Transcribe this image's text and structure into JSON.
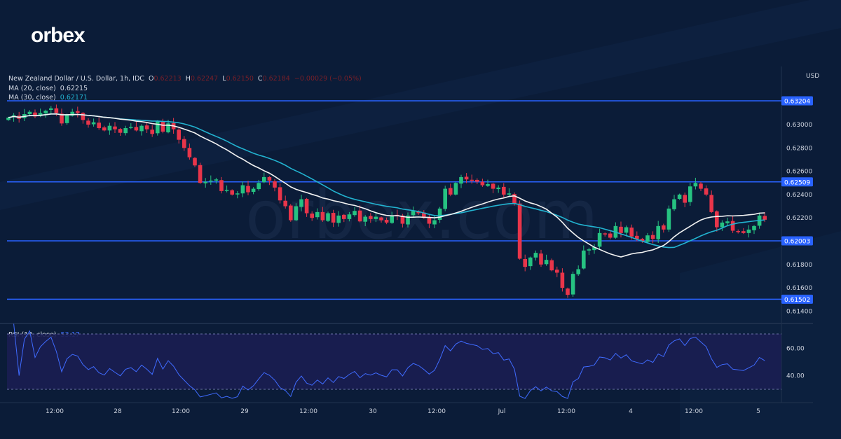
{
  "brand": {
    "logo": "orbex",
    "watermark": "orbex.com"
  },
  "legend": {
    "symbol": "New Zealand Dollar / U.S. Dollar, 1h, IDC",
    "o_label": "O",
    "o": "0.62213",
    "h_label": "H",
    "h": "0.62247",
    "l_label": "L",
    "l": "0.62150",
    "c_label": "C",
    "c": "0.62184",
    "change": "−0.00029 (−0.05%)",
    "ma20_label": "MA (20, close)",
    "ma20": "0.62215",
    "ma30_label": "MA (30, close)",
    "ma30": "0.62171",
    "rsi_label": "RSI (14, close)",
    "rsi": "53.17"
  },
  "price_axis": {
    "currency": "USD",
    "ticks": [
      "0.63000",
      "0.62800",
      "0.62600",
      "0.62400",
      "0.62200",
      "0.61800",
      "0.61600",
      "0.61400"
    ]
  },
  "levels": [
    "0.63204",
    "0.62509",
    "0.62003",
    "0.61502"
  ],
  "rsi_axis": {
    "ticks": [
      "60.00",
      "40.00"
    ]
  },
  "time_axis": [
    "12:00",
    "28",
    "12:00",
    "29",
    "12:00",
    "30",
    "12:00",
    "Jul",
    "12:00",
    "4",
    "12:00",
    "5"
  ],
  "colors": {
    "up": "#26c281",
    "down": "#e8354a",
    "level": "#2962ff",
    "ma20": "#f2f2f2",
    "ma30": "#22b3d0",
    "rsi": "#3f6bff"
  },
  "chart_data": {
    "type": "candlestick",
    "title": "New Zealand Dollar / U.S. Dollar, 1h, IDC",
    "ylabel": "USD",
    "ylim": [
      0.6135,
      0.633
    ],
    "closes": [
      0.6306,
      0.6308,
      0.6305,
      0.6309,
      0.6311,
      0.6307,
      0.631,
      0.6312,
      0.6314,
      0.631,
      0.6301,
      0.6308,
      0.6311,
      0.631,
      0.6304,
      0.63,
      0.6302,
      0.6297,
      0.6295,
      0.6299,
      0.6296,
      0.6293,
      0.6297,
      0.6298,
      0.6295,
      0.6299,
      0.6296,
      0.6292,
      0.6303,
      0.6294,
      0.6301,
      0.6296,
      0.6287,
      0.628,
      0.6272,
      0.6265,
      0.625,
      0.6251,
      0.6252,
      0.6253,
      0.6243,
      0.6244,
      0.624,
      0.6241,
      0.6248,
      0.6242,
      0.6245,
      0.625,
      0.6255,
      0.6252,
      0.6246,
      0.6235,
      0.623,
      0.6218,
      0.623,
      0.6236,
      0.6224,
      0.622,
      0.6225,
      0.6218,
      0.6224,
      0.6216,
      0.6222,
      0.6219,
      0.6223,
      0.6226,
      0.6217,
      0.6221,
      0.6219,
      0.6221,
      0.6218,
      0.6216,
      0.6222,
      0.6222,
      0.6215,
      0.6222,
      0.6226,
      0.6224,
      0.622,
      0.6215,
      0.6218,
      0.6228,
      0.6245,
      0.624,
      0.625,
      0.6255,
      0.6253,
      0.6252,
      0.6251,
      0.6248,
      0.6249,
      0.6245,
      0.6246,
      0.624,
      0.6241,
      0.6232,
      0.6185,
      0.6178,
      0.6186,
      0.619,
      0.618,
      0.6184,
      0.6175,
      0.6173,
      0.616,
      0.6154,
      0.6172,
      0.6176,
      0.6192,
      0.6193,
      0.6195,
      0.6207,
      0.6206,
      0.6203,
      0.6213,
      0.6207,
      0.6212,
      0.6204,
      0.6202,
      0.62,
      0.6205,
      0.6202,
      0.6213,
      0.621,
      0.6228,
      0.6236,
      0.624,
      0.6233,
      0.6247,
      0.625,
      0.6245,
      0.624,
      0.6225,
      0.6212,
      0.6216,
      0.6217,
      0.6209,
      0.6208,
      0.6207,
      0.621,
      0.6213,
      0.6222,
      0.62184
    ],
    "moving_averages": [
      {
        "name": "MA (20, close)",
        "period": 20
      },
      {
        "name": "MA (30, close)",
        "period": 30
      }
    ],
    "horizontal_levels": [
      0.63204,
      0.62509,
      0.62003,
      0.61502
    ],
    "rsi": {
      "period": 14,
      "bands": [
        70,
        30
      ],
      "last": 53.17
    }
  }
}
